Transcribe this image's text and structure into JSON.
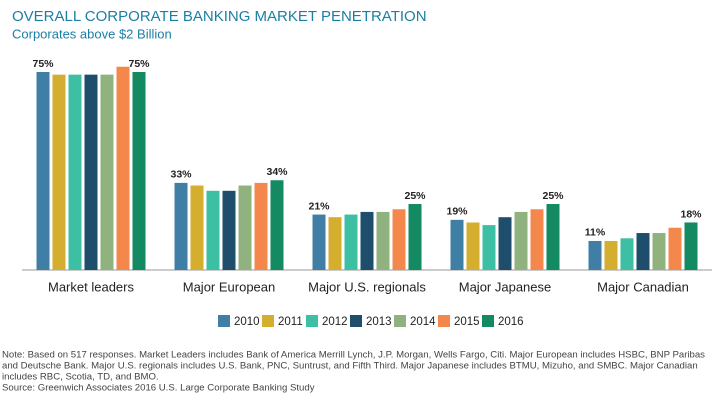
{
  "chart_data": {
    "type": "bar",
    "title": "OVERALL CORPORATE BANKING MARKET PENETRATION",
    "subtitle": "Corporates above $2 Billion",
    "categories": [
      "Market leaders",
      "Major European",
      "Major U.S. regionals",
      "Major Japanese",
      "Major Canadian"
    ],
    "series": [
      {
        "name": "2010",
        "color": "#3f7fa5",
        "values": [
          75,
          33,
          21,
          19,
          11
        ],
        "value_labels": [
          "75%",
          "33%",
          "21%",
          "19%",
          "11%"
        ]
      },
      {
        "name": "2011",
        "color": "#d3ae2f",
        "values": [
          74,
          32,
          20,
          18,
          11
        ]
      },
      {
        "name": "2012",
        "color": "#3dbfa3",
        "values": [
          74,
          30,
          21,
          17,
          12
        ]
      },
      {
        "name": "2013",
        "color": "#1f4e6d",
        "values": [
          74,
          30,
          22,
          20,
          14
        ]
      },
      {
        "name": "2014",
        "color": "#8fb27e",
        "values": [
          74,
          32,
          22,
          22,
          14
        ]
      },
      {
        "name": "2015",
        "color": "#f4884c",
        "values": [
          77,
          33,
          23,
          23,
          16
        ]
      },
      {
        "name": "2016",
        "color": "#148a63",
        "values": [
          75,
          34,
          25,
          25,
          18
        ],
        "value_labels": [
          "75%",
          "34%",
          "25%",
          "25%",
          "18%"
        ]
      }
    ],
    "notes": [
      "Note: Based on 517 responses. Market Leaders includes Bank of America Merrill Lynch, J.P. Morgan, Wells Fargo, Citi. Major European includes HSBC, BNP Paribas",
      "and Deutsche Bank. Major U.S. regionals includes U.S. Bank, PNC, Suntrust, and Fifth Third. Major Japanese includes BTMU, Mizuho, and SMBC. Major Canadian",
      "includes RBC, Scotia, TD, and BMO.",
      "Source: Greenwich Associates 2016 U.S. Large Corporate Banking Study"
    ]
  }
}
